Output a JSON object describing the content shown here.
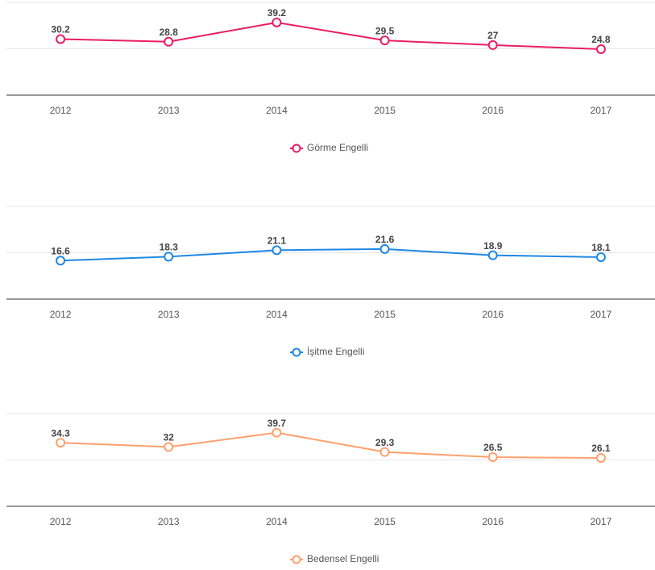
{
  "chart_data": [
    {
      "type": "line",
      "categories": [
        "2012",
        "2013",
        "2014",
        "2015",
        "2016",
        "2017"
      ],
      "series": [
        {
          "name": "Görme Engelli",
          "color": "#e91e63",
          "values": [
            30.2,
            28.8,
            39.2,
            29.5,
            27,
            24.8
          ]
        }
      ],
      "ylim": [
        0,
        50
      ],
      "yticks": [
        0,
        25,
        50
      ],
      "grid": true
    },
    {
      "type": "line",
      "categories": [
        "2012",
        "2013",
        "2014",
        "2015",
        "2016",
        "2017"
      ],
      "series": [
        {
          "name": "İşitme Engelli",
          "color": "#1e88e5",
          "values": [
            16.6,
            18.3,
            21.1,
            21.6,
            18.9,
            18.1
          ]
        }
      ],
      "ylim": [
        0,
        40
      ],
      "yticks": [
        0,
        20,
        40
      ],
      "grid": true
    },
    {
      "type": "line",
      "categories": [
        "2012",
        "2013",
        "2014",
        "2015",
        "2016",
        "2017"
      ],
      "series": [
        {
          "name": "Bedensel Engelli",
          "color": "#ffa06e",
          "values": [
            34.3,
            32,
            39.7,
            29.3,
            26.5,
            26.1
          ]
        }
      ],
      "ylim": [
        0,
        50
      ],
      "yticks": [
        0,
        25,
        50
      ],
      "grid": true
    }
  ]
}
